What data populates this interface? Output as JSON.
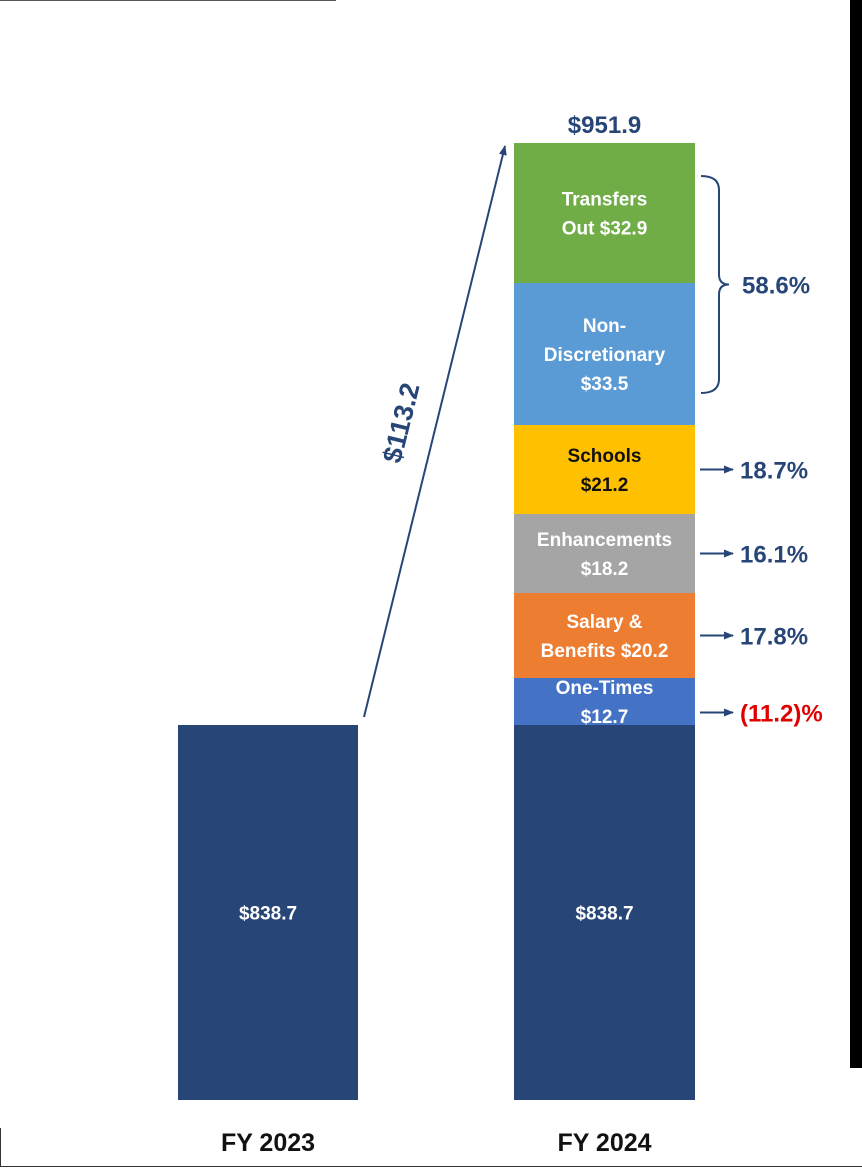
{
  "chart_data": {
    "type": "bar",
    "stacked": true,
    "title": "",
    "xlabel": "",
    "ylabel": "",
    "categories": [
      "FY 2023",
      "FY 2024"
    ],
    "base": {
      "name": "Base",
      "values": [
        838.7,
        838.7
      ],
      "labels": [
        "$838.7",
        "$838.7"
      ],
      "color": "#274677"
    },
    "series": [
      {
        "name": "One-Times",
        "fy2024": 12.7,
        "label_lines": [
          "One-Times",
          "$12.7"
        ],
        "color": "#4472C4",
        "text_color": "#ffffff"
      },
      {
        "name": "Salary & Benefits",
        "fy2024": 20.2,
        "label_lines": [
          "Salary &",
          "Benefits $20.2"
        ],
        "color": "#ED7D31",
        "text_color": "#ffffff"
      },
      {
        "name": "Enhancements",
        "fy2024": 18.2,
        "label_lines": [
          "Enhancements",
          "$18.2"
        ],
        "color": "#A5A5A5",
        "text_color": "#ffffff"
      },
      {
        "name": "Schools",
        "fy2024": 21.2,
        "label_lines": [
          "Schools",
          "$21.2"
        ],
        "color": "#FFC000",
        "text_color": "#111111"
      },
      {
        "name": "Non-Discretionary",
        "fy2024": 33.5,
        "label_lines": [
          "Non-",
          "Discretionary",
          "$33.5"
        ],
        "color": "#5B9BD5",
        "text_color": "#ffffff"
      },
      {
        "name": "Transfers Out",
        "fy2024": 32.9,
        "label_lines": [
          "Transfers",
          "Out $32.9"
        ],
        "color": "#70AD47",
        "text_color": "#ffffff"
      }
    ],
    "total_label": "$951.9",
    "increase_label": "$113.2",
    "percent_annotations": [
      {
        "text": "(11.2)%",
        "applies_to": [
          "One-Times"
        ],
        "color": "#E00000"
      },
      {
        "text": "17.8%",
        "applies_to": [
          "Salary & Benefits"
        ],
        "color": "#274677"
      },
      {
        "text": "16.1%",
        "applies_to": [
          "Enhancements"
        ],
        "color": "#274677"
      },
      {
        "text": "18.7%",
        "applies_to": [
          "Schools"
        ],
        "color": "#274677"
      },
      {
        "text": "58.6%",
        "applies_to": [
          "Non-Discretionary",
          "Transfers Out"
        ],
        "color": "#274677"
      }
    ],
    "annotation_color": "#274677"
  }
}
